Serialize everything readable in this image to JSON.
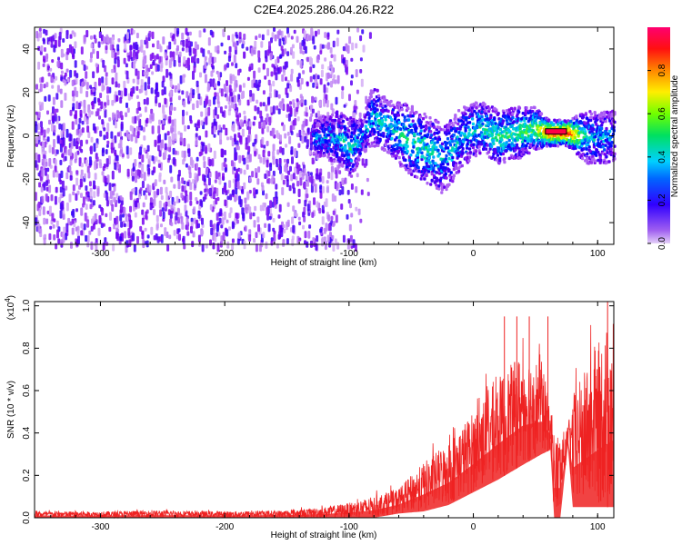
{
  "title": "C2E4.2025.286.04.26.R22",
  "chart_data": [
    {
      "type": "heatmap",
      "xlabel": "Height of straight line (km)",
      "ylabel": "Frequency (Hz)",
      "xlim": [
        -353,
        113
      ],
      "ylim": [
        -50,
        50
      ],
      "xticks": [
        -300,
        -200,
        -100,
        0,
        100
      ],
      "yticks": [
        -40,
        -20,
        0,
        20,
        40
      ],
      "colorbar": {
        "label": "Normalized spectral amplitude",
        "range": [
          0,
          1
        ],
        "ticks": [
          "0.0",
          "0.2",
          "0.4",
          "0.6",
          "0.8"
        ],
        "colors": [
          "#ead8f8",
          "#7a00f0",
          "#0000ff",
          "#00ccff",
          "#00e070",
          "#88ff00",
          "#ffee00",
          "#ff8800",
          "#ff0000",
          "#ff0080"
        ]
      },
      "noise_region": {
        "x_range": [
          -353,
          -100
        ],
        "freq_range": [
          -50,
          50
        ],
        "typical_amplitude": 0.12
      },
      "signal_track": [
        {
          "x": -130,
          "freq": 0,
          "width": 8,
          "amp": 0.25
        },
        {
          "x": -110,
          "freq": 0,
          "width": 12,
          "amp": 0.35
        },
        {
          "x": -100,
          "freq": -5,
          "width": 14,
          "amp": 0.4
        },
        {
          "x": -90,
          "freq": 0,
          "width": 8,
          "amp": 0.3
        },
        {
          "x": -82,
          "freq": 10,
          "width": 14,
          "amp": 0.35
        },
        {
          "x": -70,
          "freq": 5,
          "width": 12,
          "amp": 0.35
        },
        {
          "x": -55,
          "freq": 0,
          "width": 16,
          "amp": 0.4
        },
        {
          "x": -40,
          "freq": -5,
          "width": 16,
          "amp": 0.4
        },
        {
          "x": -25,
          "freq": -10,
          "width": 16,
          "amp": 0.35
        },
        {
          "x": -10,
          "freq": 0,
          "width": 14,
          "amp": 0.35
        },
        {
          "x": 5,
          "freq": 5,
          "width": 12,
          "amp": 0.4
        },
        {
          "x": 20,
          "freq": 0,
          "width": 12,
          "amp": 0.45
        },
        {
          "x": 35,
          "freq": 2,
          "width": 12,
          "amp": 0.45
        },
        {
          "x": 48,
          "freq": 4,
          "width": 10,
          "amp": 0.5
        },
        {
          "x": 60,
          "freq": 2,
          "width": 6,
          "amp": 0.9
        },
        {
          "x": 75,
          "freq": 2,
          "width": 6,
          "amp": 0.9
        },
        {
          "x": 90,
          "freq": 0,
          "width": 12,
          "amp": 0.35
        },
        {
          "x": 113,
          "freq": 0,
          "width": 12,
          "amp": 0.3
        }
      ],
      "peak_band": {
        "x_range": [
          58,
          75
        ],
        "freq": 2,
        "amplitude": 0.95
      }
    },
    {
      "type": "area",
      "xlabel": "Height of straight line (km)",
      "ylabel": "SNR (10 * v/v)",
      "y_scale_label": "(x10^4)",
      "xlim": [
        -353,
        113
      ],
      "ylim": [
        0,
        1.02
      ],
      "xticks": [
        -300,
        -200,
        -100,
        0,
        100
      ],
      "yticks": [
        0.0,
        0.2,
        0.4,
        0.6,
        0.8,
        1.0
      ],
      "color": "#ee2222",
      "x": [
        -353,
        -300,
        -250,
        -200,
        -150,
        -120,
        -100,
        -80,
        -60,
        -40,
        -20,
        0,
        20,
        40,
        55,
        62,
        65,
        70,
        76,
        80,
        90,
        100,
        113
      ],
      "envelope_max": [
        0.03,
        0.03,
        0.035,
        0.03,
        0.035,
        0.05,
        0.07,
        0.1,
        0.14,
        0.26,
        0.36,
        0.5,
        0.66,
        0.78,
        0.74,
        0.52,
        0.4,
        0.4,
        0.42,
        0.58,
        0.7,
        0.82,
        0.96
      ],
      "envelope_min": [
        0.0,
        0.0,
        0.0,
        0.0,
        0.0,
        0.0,
        0.0,
        0.0,
        0.02,
        0.03,
        0.06,
        0.12,
        0.18,
        0.25,
        0.3,
        0.32,
        0.0,
        0.0,
        0.34,
        0.05,
        0.05,
        0.05,
        0.05
      ],
      "spikes": [
        {
          "x": 25,
          "y": 0.95
        },
        {
          "x": 35,
          "y": 0.95
        },
        {
          "x": 45,
          "y": 0.95
        },
        {
          "x": 60,
          "y": 0.95
        },
        {
          "x": 108,
          "y": 1.02
        }
      ]
    }
  ]
}
